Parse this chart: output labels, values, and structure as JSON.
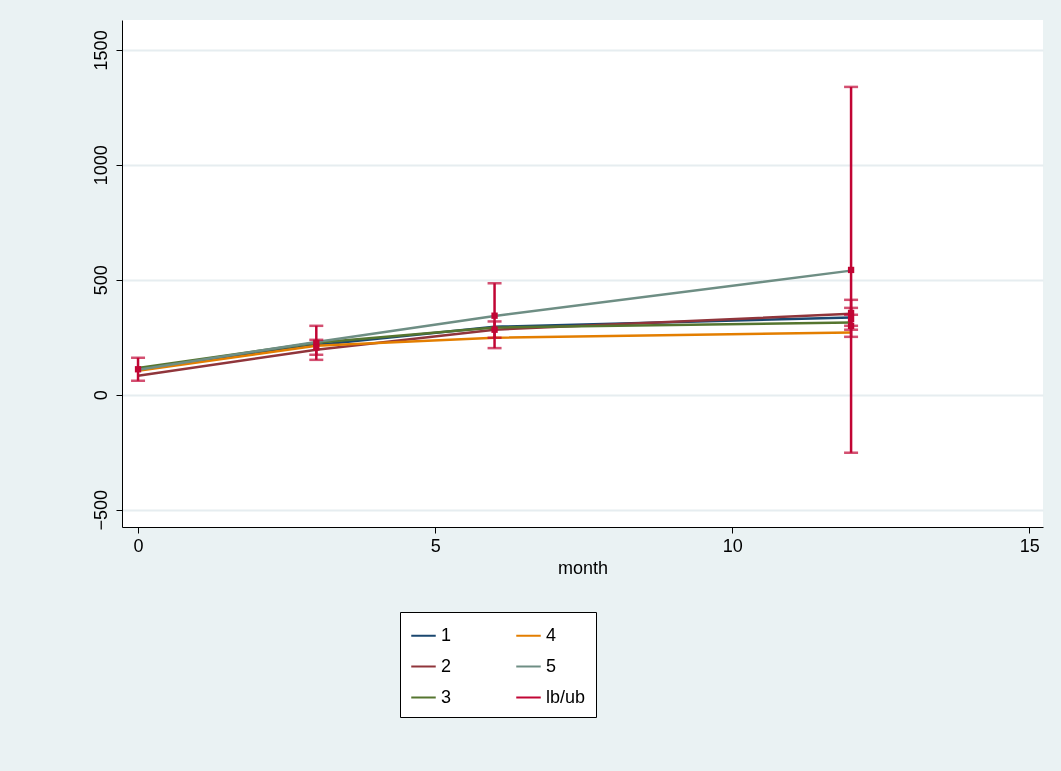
{
  "chart_data": {
    "type": "line",
    "xlabel": "month",
    "xlim": [
      -0.27,
      15.23
    ],
    "ylim": [
      -575,
      1630
    ],
    "xticks": [
      0,
      5,
      10,
      15
    ],
    "yticks": [
      -500,
      0,
      500,
      1000,
      1500
    ],
    "grid": "y",
    "legend": "bottom",
    "x": [
      0,
      3,
      6,
      12
    ],
    "series": [
      {
        "name": "1",
        "color": "#1a476f",
        "values": [
          113,
          217,
          296,
          336
        ]
      },
      {
        "name": "2",
        "color": "#90353b",
        "values": [
          83,
          196,
          283,
          352
        ]
      },
      {
        "name": "3",
        "color": "#55752f",
        "values": [
          117,
          226,
          293,
          314
        ]
      },
      {
        "name": "4",
        "color": "#e37e00",
        "values": [
          104,
          213,
          248,
          271
        ]
      },
      {
        "name": "5",
        "color": "#6e8e84",
        "values": [
          109,
          230,
          343,
          540
        ]
      },
      {
        "name": "lb/ub",
        "type": "scatter",
        "marker": "square",
        "color": "#c10534",
        "x": [
          0,
          3,
          3,
          6,
          6,
          12,
          12,
          12,
          12
        ],
        "values": [
          111,
          226,
          206,
          344,
          283,
          543,
          356,
          330,
          300
        ],
        "errors": [
          [
            61,
            161
          ],
          [
            152,
            300
          ],
          [
            174,
            239
          ],
          [
            203,
            485
          ],
          [
            248,
            319
          ],
          [
            -252,
            1339
          ],
          [
            300,
            413
          ],
          [
            283,
            378
          ],
          [
            252,
            348
          ]
        ]
      }
    ]
  }
}
